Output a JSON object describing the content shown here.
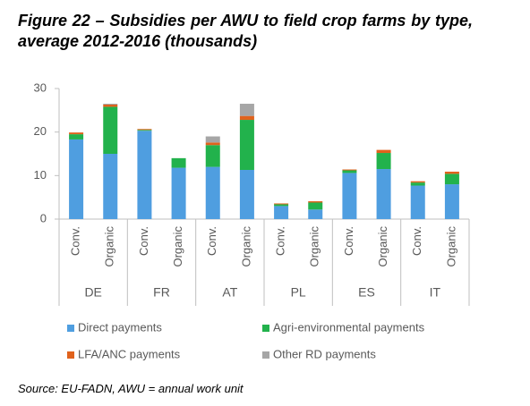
{
  "chart_data": {
    "type": "stacked_bar",
    "title": "Figure 22 – Subsidies per AWU to field crop farms by type, average 2012-2016 (thousands)",
    "source": "Source: EU-FADN, AWU = annual work unit",
    "groups": [
      "DE",
      "FR",
      "AT",
      "PL",
      "ES",
      "IT"
    ],
    "categories": [
      "Conv.",
      "Organic",
      "Conv.",
      "Organic",
      "Conv.",
      "Organic",
      "Conv.",
      "Organic",
      "Conv.",
      "Organic",
      "Conv.",
      "Organic"
    ],
    "series": [
      {
        "name": "Direct payments",
        "color": "#4f9ee0",
        "values": [
          18.3,
          15,
          20.3,
          11.8,
          12,
          11.3,
          3,
          2.2,
          10.6,
          11.5,
          7.7,
          8
        ]
      },
      {
        "name": "Agri-environmental payments",
        "color": "#22b24c",
        "values": [
          1.2,
          10.8,
          0.2,
          2.2,
          5,
          11.5,
          0.4,
          1.6,
          0.6,
          3.7,
          0.7,
          2.4
        ]
      },
      {
        "name": "LFA/ANC payments",
        "color": "#e0621c",
        "values": [
          0.4,
          0.5,
          0.2,
          0,
          0.6,
          0.9,
          0.2,
          0.3,
          0.2,
          0.7,
          0.3,
          0.5
        ]
      },
      {
        "name": "Other RD payments",
        "color": "#a6a6a6",
        "values": [
          0,
          0.2,
          0,
          0,
          1.4,
          2.8,
          0,
          0,
          0,
          0,
          0,
          0
        ]
      }
    ],
    "ylim": [
      0,
      30
    ],
    "yticks": [
      0,
      10,
      20,
      30
    ]
  }
}
